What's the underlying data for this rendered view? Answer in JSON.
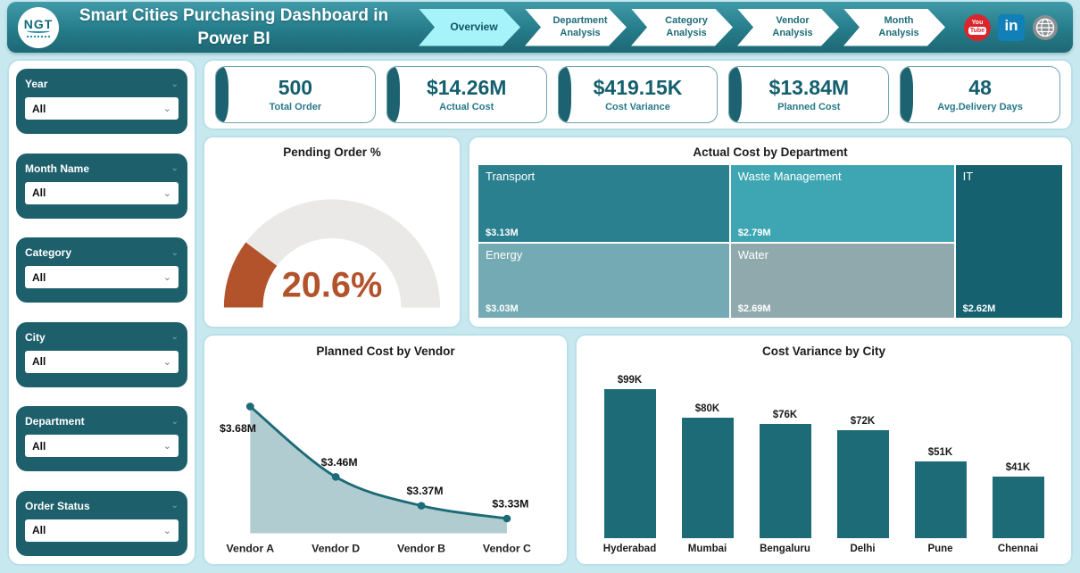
{
  "header": {
    "logo_text": "NGT",
    "title": "Smart Cities Purchasing Dashboard in Power BI",
    "nav": [
      {
        "label": "Overview",
        "active": true
      },
      {
        "label": "Department Analysis",
        "active": false
      },
      {
        "label": "Category Analysis",
        "active": false
      },
      {
        "label": "Vendor Analysis",
        "active": false
      },
      {
        "label": "Month Analysis",
        "active": false
      }
    ],
    "social": {
      "youtube_line1": "You",
      "youtube_line2": "Tube",
      "linkedin_label": "in",
      "icons": [
        "youtube",
        "linkedin",
        "website-globe"
      ]
    }
  },
  "filters": [
    {
      "label": "Year",
      "value": "All"
    },
    {
      "label": "Month Name",
      "value": "All"
    },
    {
      "label": "Category",
      "value": "All"
    },
    {
      "label": "City",
      "value": "All"
    },
    {
      "label": "Department",
      "value": "All"
    },
    {
      "label": "Order Status",
      "value": "All"
    }
  ],
  "kpis": [
    {
      "value": "500",
      "label": "Total Order"
    },
    {
      "value": "$14.26M",
      "label": "Actual Cost"
    },
    {
      "value": "$419.15K",
      "label": "Cost Variance"
    },
    {
      "value": "$13.84M",
      "label": "Planned Cost"
    },
    {
      "value": "48",
      "label": "Avg.Delivery Days"
    }
  ],
  "colors": {
    "accent_dark_teal": "#1d6b77",
    "slicer_teal": "#1e5f6c",
    "page_background": "#c7e8ef",
    "gauge_orange": "#b3532b",
    "nav_active": "#a6f4fa"
  },
  "chart_data": [
    {
      "type": "gauge",
      "title": "Pending Order %",
      "value": 20.6,
      "label": "20.6%",
      "min": 0,
      "max": 100,
      "fill_color": "#b3532b",
      "track_color": "#eae9e7"
    },
    {
      "type": "heatmap",
      "subtype": "treemap",
      "title": "Actual Cost by Department",
      "items": [
        {
          "name": "Transport",
          "label": "$3.13M",
          "value": 3.13,
          "color": "#2b8090",
          "col": 0
        },
        {
          "name": "Energy",
          "label": "$3.03M",
          "value": 3.03,
          "color": "#74aab3",
          "col": 0
        },
        {
          "name": "Waste Management",
          "label": "$2.79M",
          "value": 2.79,
          "color": "#3ea6b2",
          "col": 1
        },
        {
          "name": "Water",
          "label": "$2.69M",
          "value": 2.69,
          "color": "#90a9ad",
          "col": 1
        },
        {
          "name": "IT",
          "label": "$2.62M",
          "value": 2.62,
          "color": "#156170",
          "col": 2
        }
      ]
    },
    {
      "type": "area",
      "title": "Planned Cost by Vendor",
      "categories": [
        "Vendor A",
        "Vendor D",
        "Vendor B",
        "Vendor C"
      ],
      "values": [
        3.68,
        3.46,
        3.37,
        3.33
      ],
      "labels": [
        "$3.68M",
        "$3.46M",
        "$3.37M",
        "$3.33M"
      ],
      "ylim": [
        3.3,
        3.72
      ],
      "line_color": "#1d6b77",
      "fill_color": "#a8c6cb",
      "grid": false,
      "legend": "none"
    },
    {
      "type": "bar",
      "title": "Cost Variance by City",
      "categories": [
        "Hyderabad",
        "Mumbai",
        "Bengaluru",
        "Delhi",
        "Pune",
        "Chennai"
      ],
      "values": [
        99,
        80,
        76,
        72,
        51,
        41
      ],
      "labels": [
        "$99K",
        "$80K",
        "$76K",
        "$72K",
        "$51K",
        "$41K"
      ],
      "ylim": [
        0,
        105
      ],
      "bar_color": "#1d6b77",
      "grid": false,
      "legend": "none"
    }
  ]
}
